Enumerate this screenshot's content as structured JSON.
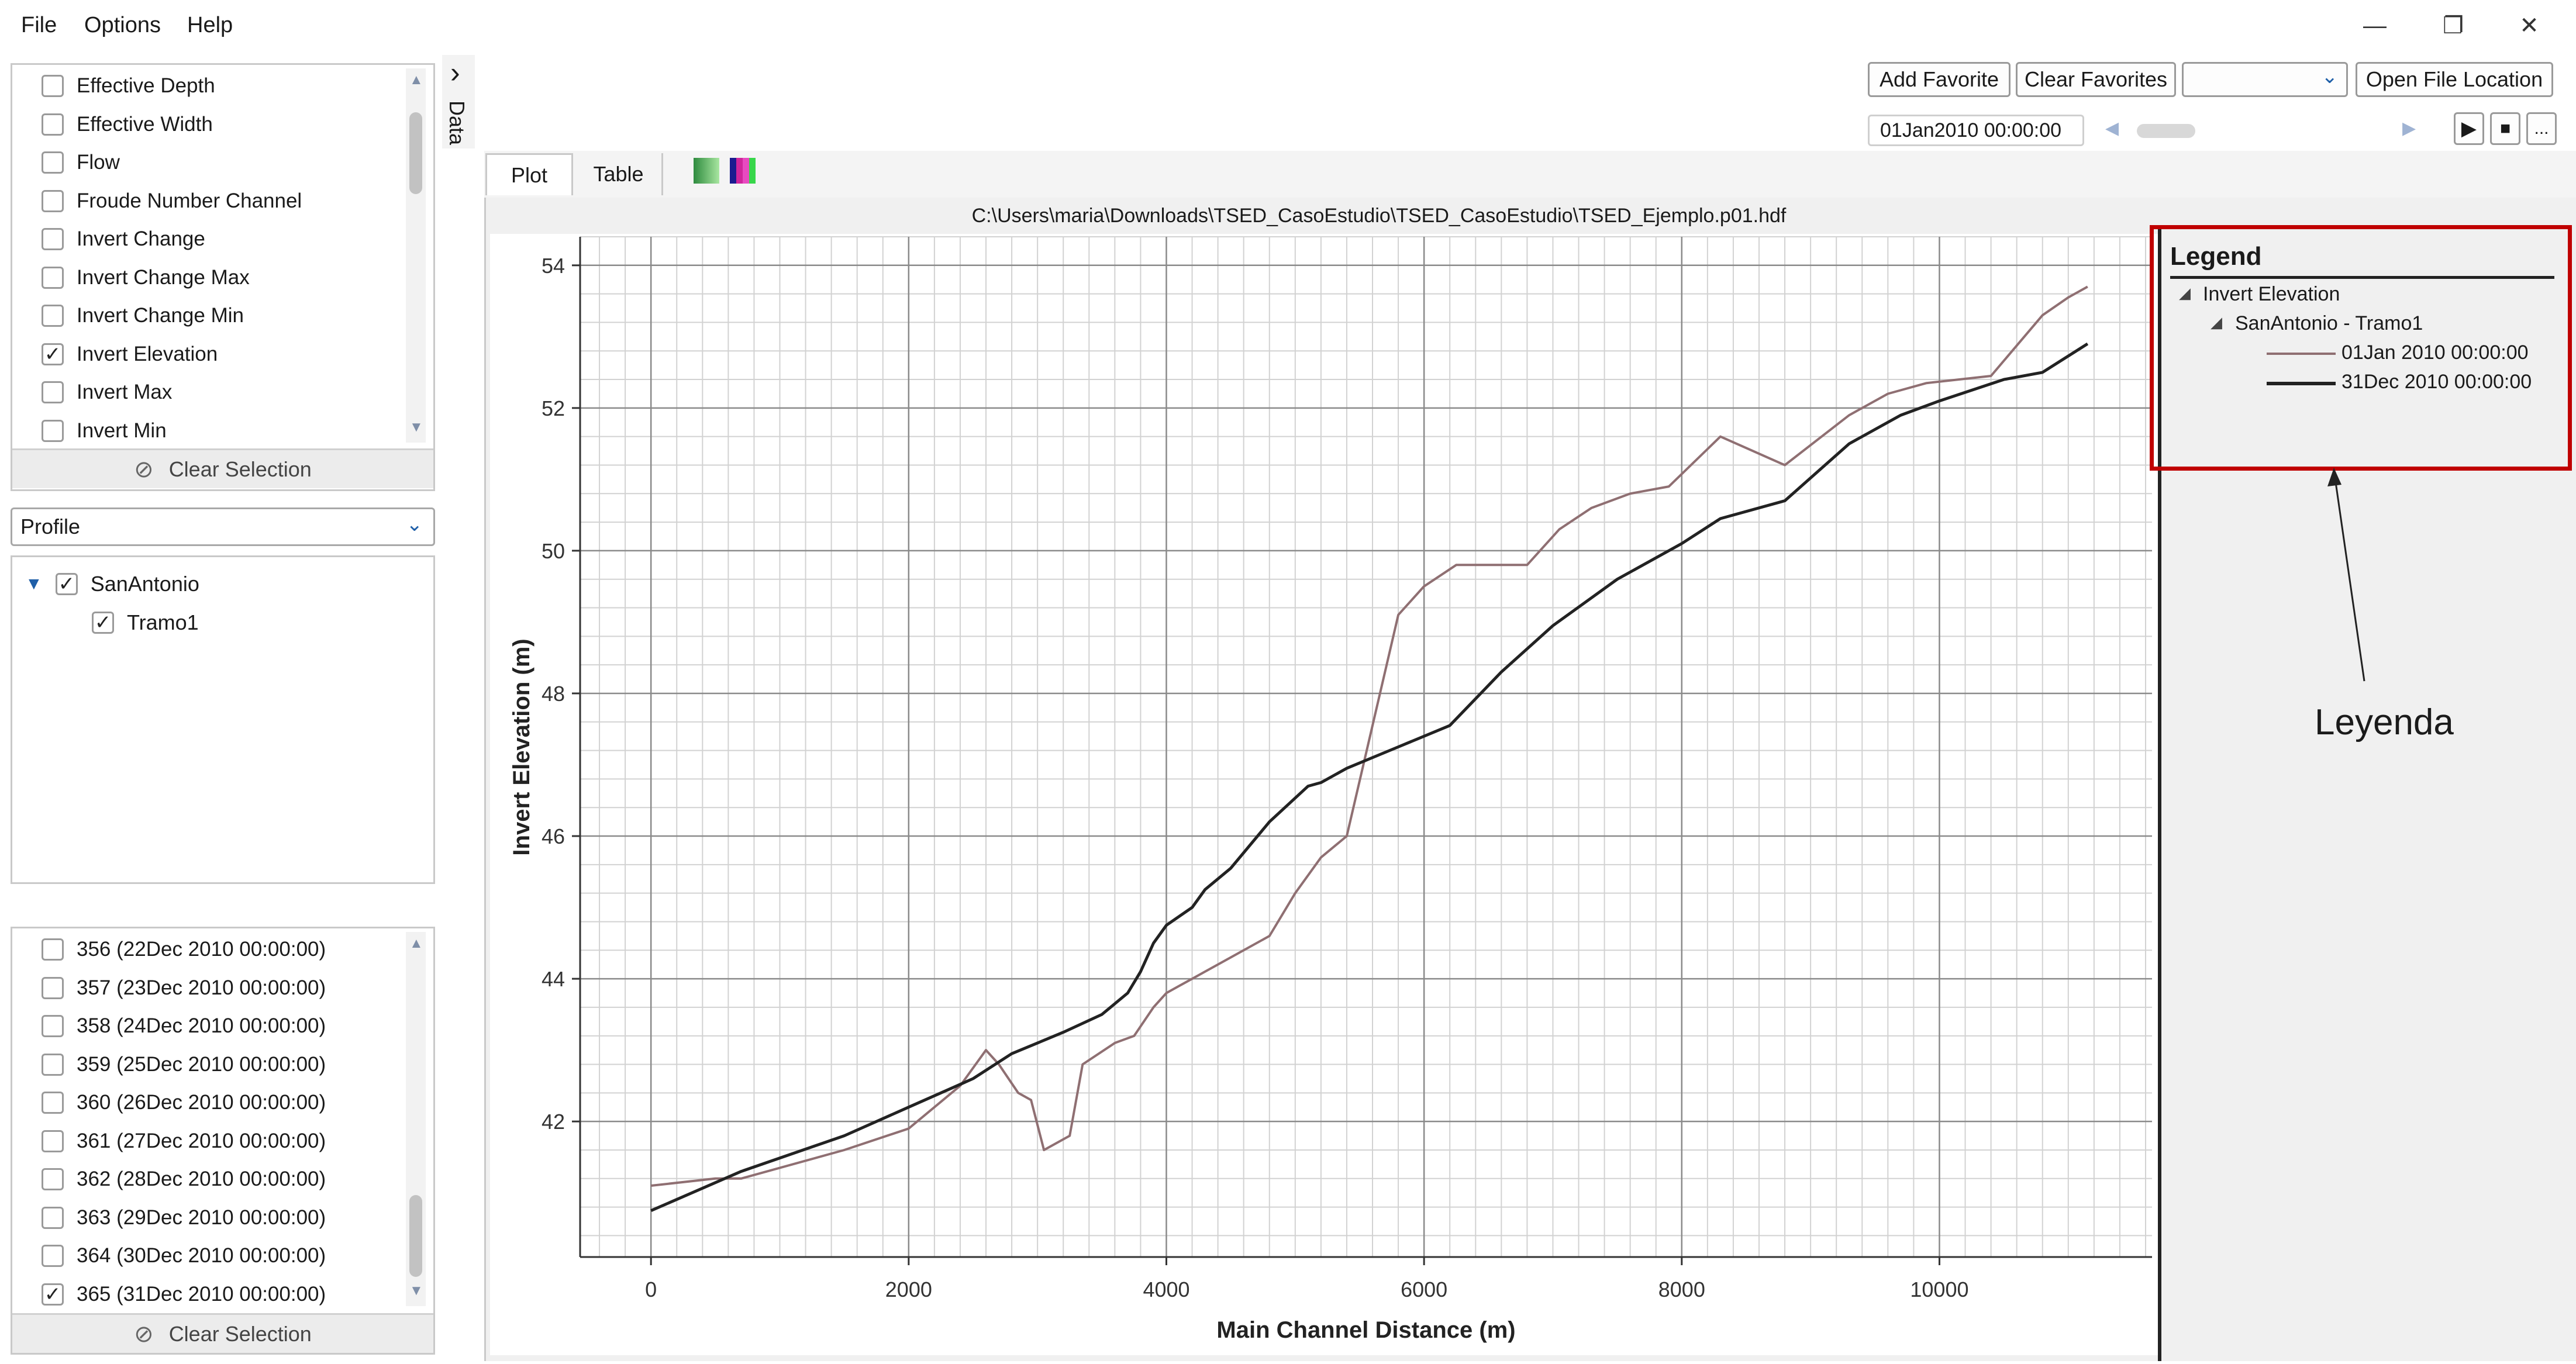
{
  "menu": {
    "file": "File",
    "options": "Options",
    "help": "Help"
  },
  "window_controls": {
    "minimize": "—",
    "restore": "❐",
    "close": "✕"
  },
  "variables": [
    {
      "label": "Effective Depth",
      "checked": false
    },
    {
      "label": "Effective Width",
      "checked": false
    },
    {
      "label": "Flow",
      "checked": false
    },
    {
      "label": "Froude Number Channel",
      "checked": false
    },
    {
      "label": "Invert Change",
      "checked": false
    },
    {
      "label": "Invert Change Max",
      "checked": false
    },
    {
      "label": "Invert Change Min",
      "checked": false
    },
    {
      "label": "Invert Elevation",
      "checked": true
    },
    {
      "label": "Invert Max",
      "checked": false
    },
    {
      "label": "Invert Min",
      "checked": false
    }
  ],
  "clear_selection_label": "Clear Selection",
  "profile_select": {
    "value": "Profile"
  },
  "tree": {
    "river": "SanAntonio",
    "reach": "Tramo1"
  },
  "times": [
    {
      "label": "356 (22Dec 2010 00:00:00)",
      "checked": false
    },
    {
      "label": "357 (23Dec 2010 00:00:00)",
      "checked": false
    },
    {
      "label": "358 (24Dec 2010 00:00:00)",
      "checked": false
    },
    {
      "label": "359 (25Dec 2010 00:00:00)",
      "checked": false
    },
    {
      "label": "360 (26Dec 2010 00:00:00)",
      "checked": false
    },
    {
      "label": "361 (27Dec 2010 00:00:00)",
      "checked": false
    },
    {
      "label": "362 (28Dec 2010 00:00:00)",
      "checked": false
    },
    {
      "label": "363 (29Dec 2010 00:00:00)",
      "checked": false
    },
    {
      "label": "364 (30Dec 2010 00:00:00)",
      "checked": false
    },
    {
      "label": "365 (31Dec 2010 00:00:00)",
      "checked": true
    }
  ],
  "side_tab": {
    "label": "Data",
    "chevron": "›"
  },
  "toolbar": {
    "add_favorite": "Add Favorite",
    "clear_favorites": "Clear Favorites",
    "favorites_select": "",
    "open_file_location": "Open File Location",
    "time_field": "01Jan2010 00:00:00",
    "more": "..."
  },
  "tabs": {
    "plot": "Plot",
    "table": "Table"
  },
  "file_path": "C:\\Users\\maria\\Downloads\\TSED_CasoEstudio\\TSED_CasoEstudio\\TSED_Ejemplo.p01.hdf",
  "legend": {
    "title": "Legend",
    "group": "Invert Elevation",
    "subgroup": "SanAntonio - Tramo1",
    "entries": [
      "01Jan 2010 00:00:00",
      "31Dec 2010 00:00:00"
    ]
  },
  "annotation": {
    "label": "Leyenda"
  },
  "colors": {
    "series1": "#8f6f72",
    "series2": "#222222",
    "highlight": "#c00000",
    "tree_arrow": "#1f5fa8"
  },
  "chart_data": {
    "type": "line",
    "xlabel": "Main Channel Distance (m)",
    "ylabel": "Invert Elevation (m)",
    "xlim": [
      -550,
      11650
    ],
    "ylim": [
      40.1,
      54.4
    ],
    "xticks": [
      0,
      2000,
      4000,
      6000,
      8000,
      10000
    ],
    "yticks": [
      42,
      44,
      46,
      48,
      50,
      52,
      54
    ],
    "grid": true,
    "legend_position": "right",
    "series": [
      {
        "name": "01Jan 2010 00:00:00",
        "x": [
          0,
          500,
          700,
          1500,
          2000,
          2400,
          2600,
          2700,
          2850,
          2950,
          3050,
          3250,
          3350,
          3600,
          3750,
          3900,
          4000,
          4100,
          4200,
          4300,
          4500,
          4800,
          5000,
          5200,
          5400,
          5800,
          6000,
          6250,
          6800,
          7050,
          7300,
          7600,
          7900,
          8300,
          8800,
          9300,
          9600,
          9900,
          10400,
          10800,
          11000,
          11150
        ],
        "y": [
          41.1,
          41.2,
          41.2,
          41.6,
          41.9,
          42.5,
          43.0,
          42.8,
          42.4,
          42.3,
          41.6,
          41.8,
          42.8,
          43.1,
          43.2,
          43.6,
          43.8,
          43.9,
          44.0,
          44.1,
          44.3,
          44.6,
          45.2,
          45.7,
          46.0,
          49.1,
          49.5,
          49.8,
          49.8,
          50.3,
          50.6,
          50.8,
          50.9,
          51.6,
          51.2,
          51.9,
          52.2,
          52.35,
          52.45,
          53.3,
          53.55,
          53.7
        ]
      },
      {
        "name": "31Dec 2010 00:00:00",
        "x": [
          0,
          700,
          1500,
          2000,
          2500,
          2800,
          3000,
          3200,
          3500,
          3700,
          3800,
          3900,
          4000,
          4200,
          4300,
          4500,
          4800,
          5100,
          5200,
          5400,
          5800,
          6200,
          6600,
          7000,
          7500,
          8000,
          8300,
          8800,
          9300,
          9700,
          10000,
          10500,
          10800,
          11150
        ],
        "y": [
          40.75,
          41.3,
          41.8,
          42.2,
          42.6,
          42.95,
          43.1,
          43.25,
          43.5,
          43.8,
          44.1,
          44.5,
          44.75,
          45.0,
          45.25,
          45.55,
          46.2,
          46.7,
          46.75,
          46.95,
          47.25,
          47.55,
          48.3,
          48.95,
          49.6,
          50.1,
          50.45,
          50.7,
          51.5,
          51.9,
          52.1,
          52.4,
          52.5,
          52.9
        ]
      }
    ]
  }
}
